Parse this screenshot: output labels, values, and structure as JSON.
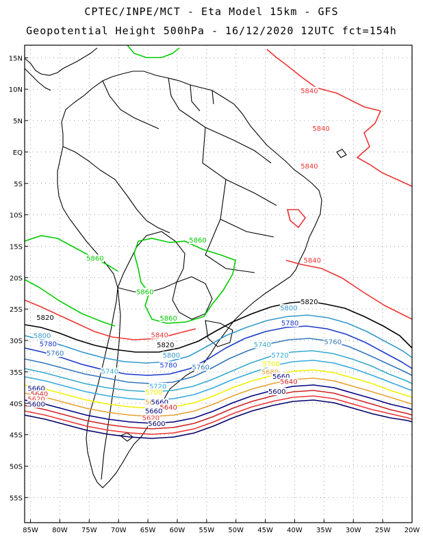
{
  "header": {
    "line1": "CPTEC/INPE/MCT -  Eta Model 15km - GFS",
    "line2": "Geopotential Height 500hPa - 16/12/2020 12UTC fct=154h"
  },
  "axes": {
    "lat_labels": [
      "15N",
      "10N",
      "5N",
      "EQ",
      "5S",
      "10S",
      "15S",
      "20S",
      "25S",
      "30S",
      "35S",
      "40S",
      "45S",
      "50S",
      "55S"
    ],
    "lon_labels": [
      "85W",
      "80W",
      "75W",
      "70W",
      "65W",
      "60W",
      "55W",
      "50W",
      "45W",
      "40W",
      "35W",
      "30W",
      "25W",
      "20W"
    ],
    "lat_range": [
      -59,
      17
    ],
    "lon_range": [
      -86,
      -20
    ],
    "grid": true
  },
  "map_data": {
    "region": "South America",
    "field": "500hPa geopotential height (gpm)",
    "contour_colors": {
      "5860": "#00cc00",
      "5840": "#ee3333",
      "5820": "#000000",
      "5800": "#3399cc",
      "5780": "#1a3acc",
      "5760": "#3377bb",
      "5740": "#33aacc",
      "5720": "#33aadd",
      "5700": "#f0f000",
      "5680": "#e8a030",
      "5660": "#000080",
      "5640": "#cc2222",
      "5620": "#ee3333",
      "5600": "#000066"
    },
    "labels": [
      {
        "text": "5840",
        "lon": -37.5,
        "lat": 9.5
      },
      {
        "text": "5840",
        "lon": -35.5,
        "lat": 3.5
      },
      {
        "text": "5840",
        "lon": -37.5,
        "lat": -2.5
      },
      {
        "text": "5840",
        "lon": -37.0,
        "lat": -17.5
      },
      {
        "text": "5860",
        "lon": -56.5,
        "lat": -14.3
      },
      {
        "text": "5860",
        "lon": -74.0,
        "lat": -17.2
      },
      {
        "text": "5860",
        "lon": -65.5,
        "lat": -22.5
      },
      {
        "text": "5860",
        "lon": -61.5,
        "lat": -26.7
      },
      {
        "text": "5820",
        "lon": -37.5,
        "lat": -24.1
      },
      {
        "text": "5800",
        "lon": -41.0,
        "lat": -25.1
      },
      {
        "text": "5780",
        "lon": -40.8,
        "lat": -27.5
      },
      {
        "text": "5760",
        "lon": -33.5,
        "lat": -30.5
      },
      {
        "text": "5740",
        "lon": -45.5,
        "lat": -30.9
      },
      {
        "text": "5720",
        "lon": -42.5,
        "lat": -32.6
      },
      {
        "text": "5700",
        "lon": -44.0,
        "lat": -34.0
      },
      {
        "text": "5680",
        "lon": -44.2,
        "lat": -35.3
      },
      {
        "text": "5660",
        "lon": -42.3,
        "lat": -36.0
      },
      {
        "text": "5640",
        "lon": -41.0,
        "lat": -36.8
      },
      {
        "text": "5600",
        "lon": -43.0,
        "lat": -38.4
      },
      {
        "text": "5820",
        "lon": -82.5,
        "lat": -26.6
      },
      {
        "text": "5800",
        "lon": -83.0,
        "lat": -29.5
      },
      {
        "text": "5780",
        "lon": -82.0,
        "lat": -30.8
      },
      {
        "text": "5760",
        "lon": -80.8,
        "lat": -32.3
      },
      {
        "text": "5840",
        "lon": -63.0,
        "lat": -29.4
      },
      {
        "text": "5820",
        "lon": -62.0,
        "lat": -31.0
      },
      {
        "text": "5800",
        "lon": -61.0,
        "lat": -32.6
      },
      {
        "text": "5780",
        "lon": -61.5,
        "lat": -34.2
      },
      {
        "text": "5760",
        "lon": -56.0,
        "lat": -34.5
      },
      {
        "text": "5740",
        "lon": -71.5,
        "lat": -35.2
      },
      {
        "text": "5720",
        "lon": -63.3,
        "lat": -37.6
      },
      {
        "text": "5700",
        "lon": -64.0,
        "lat": -38.5
      },
      {
        "text": "5680",
        "lon": -64.0,
        "lat": -40.1
      },
      {
        "text": "5660",
        "lon": -63.0,
        "lat": -40.1
      },
      {
        "text": "5640",
        "lon": -61.5,
        "lat": -40.9
      },
      {
        "text": "5660",
        "lon": -64.0,
        "lat": -41.5
      },
      {
        "text": "5620",
        "lon": -64.5,
        "lat": -42.6
      },
      {
        "text": "5600",
        "lon": -63.5,
        "lat": -43.5
      },
      {
        "text": "5660",
        "lon": -84.0,
        "lat": -37.9
      },
      {
        "text": "5640",
        "lon": -83.5,
        "lat": -38.8
      },
      {
        "text": "5620",
        "lon": -84.0,
        "lat": -39.6
      },
      {
        "text": "5600",
        "lon": -84.0,
        "lat": -40.4
      }
    ]
  }
}
